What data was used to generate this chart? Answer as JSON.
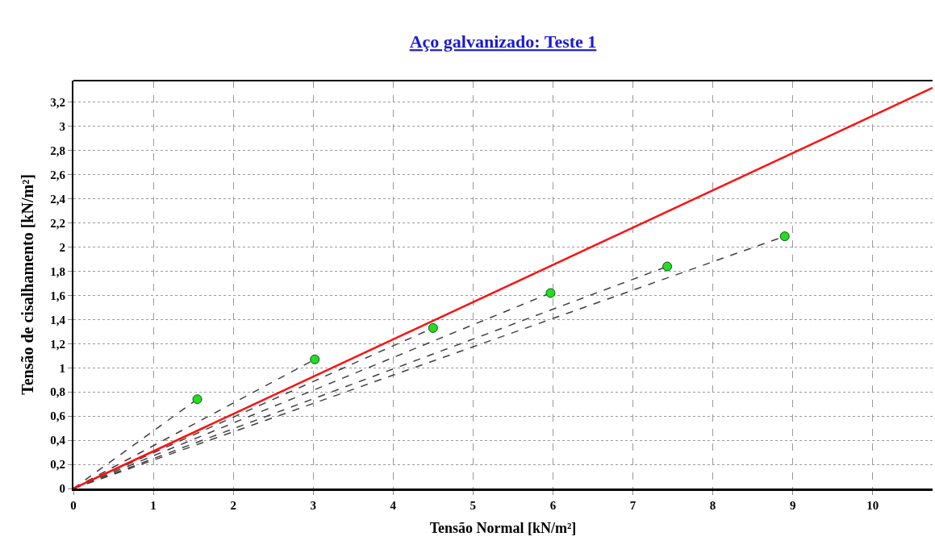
{
  "chart_data": {
    "type": "scatter",
    "title": "Aço galvanizado: Teste 1",
    "xlabel": "Tensão Normal [kN/m²]",
    "ylabel": "Tensão de cisalhamento [kN/m²]",
    "xlim": [
      0,
      10.75
    ],
    "ylim": [
      0,
      3.38
    ],
    "xticks": [
      0,
      1,
      2,
      3,
      4,
      5,
      6,
      7,
      8,
      9,
      10
    ],
    "yticks": [
      0,
      {
        "value": 0.2,
        "label": "0,2"
      },
      {
        "value": 0.4,
        "label": "0,4"
      },
      {
        "value": 0.6,
        "label": "0,6"
      },
      {
        "value": 0.8,
        "label": "0,8"
      },
      1,
      {
        "value": 1.2,
        "label": "1,2"
      },
      {
        "value": 1.4,
        "label": "1,4"
      },
      {
        "value": 1.6,
        "label": "1,6"
      },
      {
        "value": 1.8,
        "label": "1,8"
      },
      2,
      {
        "value": 2.2,
        "label": "2,2"
      },
      {
        "value": 2.4,
        "label": "2,4"
      },
      {
        "value": 2.6,
        "label": "2,6"
      },
      {
        "value": 2.8,
        "label": "2,8"
      },
      3,
      {
        "value": 3.2,
        "label": "3,2"
      }
    ],
    "grid": true,
    "series": [
      {
        "type": "line",
        "line_style": "dashed",
        "marker": "none",
        "color": "#404040",
        "x": [
          0,
          1.55
        ],
        "values": [
          0,
          0.74
        ]
      },
      {
        "type": "line",
        "line_style": "dashed",
        "marker": "none",
        "color": "#404040",
        "x": [
          0,
          3.02
        ],
        "values": [
          0,
          1.07
        ]
      },
      {
        "type": "line",
        "line_style": "dashed",
        "marker": "none",
        "color": "#404040",
        "x": [
          0,
          4.5
        ],
        "values": [
          0,
          1.33
        ]
      },
      {
        "type": "line",
        "line_style": "dashed",
        "marker": "none",
        "color": "#404040",
        "x": [
          0,
          5.97
        ],
        "values": [
          0,
          1.62
        ]
      },
      {
        "type": "line",
        "line_style": "dashed",
        "marker": "none",
        "color": "#404040",
        "x": [
          0,
          7.43
        ],
        "values": [
          0,
          1.84
        ]
      },
      {
        "type": "line",
        "line_style": "dashed",
        "marker": "none",
        "color": "#404040",
        "x": [
          0,
          8.9
        ],
        "values": [
          0,
          2.09
        ]
      },
      {
        "type": "line",
        "line_style": "solid",
        "marker": "none",
        "color": "#ff1010",
        "x": [
          0,
          10.75
        ],
        "values": [
          0,
          3.32
        ]
      },
      {
        "marker": "circle",
        "color": "#22dd22",
        "x": [
          1.55,
          3.02,
          4.5,
          5.97,
          7.43,
          8.9
        ],
        "values": [
          0.74,
          1.07,
          1.33,
          1.62,
          1.84,
          2.09
        ]
      }
    ]
  }
}
